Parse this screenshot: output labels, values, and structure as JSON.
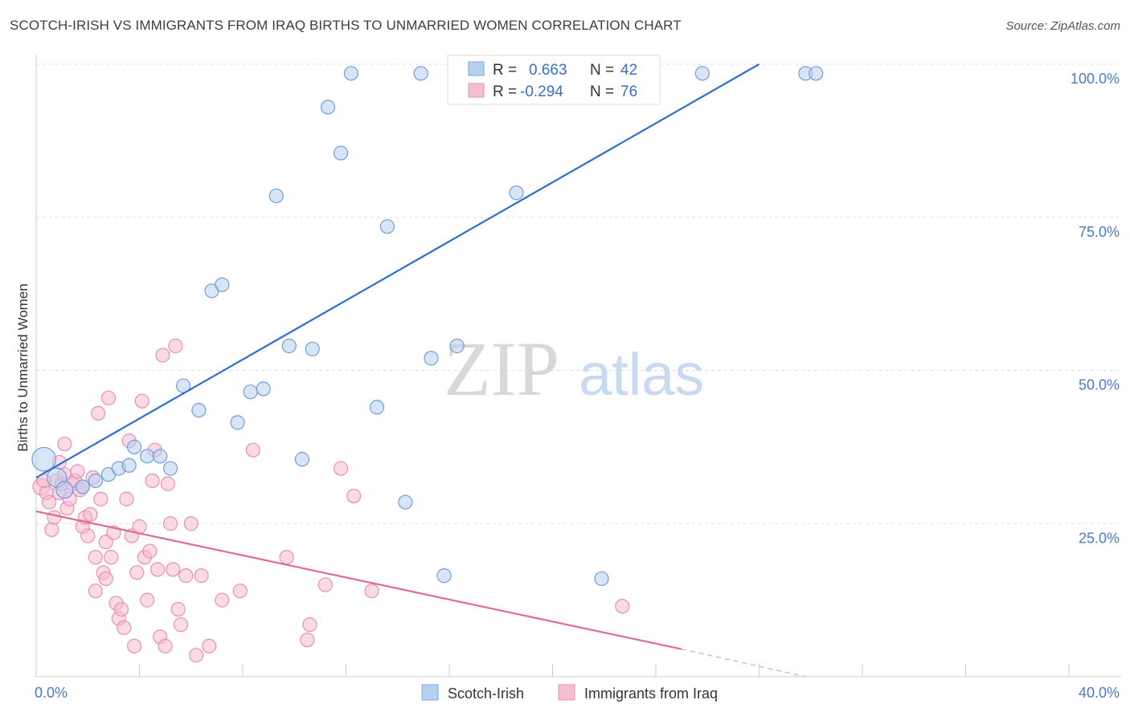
{
  "title": "SCOTCH-IRISH VS IMMIGRANTS FROM IRAQ BIRTHS TO UNMARRIED WOMEN CORRELATION CHART",
  "source": "Source: ZipAtlas.com",
  "watermark": {
    "zip": "ZIP",
    "atlas": "atlas"
  },
  "colors": {
    "blue": "#3a78d0",
    "blue_fill": "#b8d0f0",
    "pink": "#e06a98",
    "pink_fill": "#f6bcd0",
    "tick": "#4a7bc8",
    "grid": "#dddddd"
  },
  "legend": {
    "rows": [
      {
        "r_label": "R =",
        "r_value": "0.663",
        "n_label": "N =",
        "n_value": "42"
      },
      {
        "r_label": "R =",
        "r_value": "-0.294",
        "n_label": "N =",
        "n_value": "76"
      }
    ]
  },
  "chart_data": {
    "type": "scatter",
    "title": "SCOTCH-IRISH VS IMMIGRANTS FROM IRAQ BIRTHS TO UNMARRIED WOMEN CORRELATION CHART",
    "xlabel": "",
    "ylabel": "Births to Unmarried Women",
    "xlim": [
      0,
      40
    ],
    "ylim": [
      0,
      100
    ],
    "x_tick_labels": [
      "0.0%",
      "40.0%"
    ],
    "y_ticks": [
      25,
      50,
      75,
      100
    ],
    "y_tick_labels": [
      "25.0%",
      "50.0%",
      "75.0%",
      "100.0%"
    ],
    "grid": true,
    "legend_position": "top-center",
    "series": [
      {
        "name": "Scotch-Irish",
        "color": "#3a78d0",
        "R": 0.663,
        "N": 42,
        "trend": {
          "x": [
            0,
            28.0
          ],
          "y": [
            32.5,
            100
          ]
        },
        "points": [
          [
            0.3,
            35.5,
            3
          ],
          [
            0.8,
            32.5,
            2
          ],
          [
            1.1,
            30.5,
            1.5
          ],
          [
            1.8,
            31.0,
            1
          ],
          [
            2.3,
            32.0,
            1
          ],
          [
            2.8,
            33.0,
            1
          ],
          [
            3.2,
            34.0,
            1
          ],
          [
            3.6,
            34.5,
            1
          ],
          [
            3.8,
            37.5,
            1
          ],
          [
            4.3,
            36.0,
            1
          ],
          [
            4.8,
            36.0,
            1
          ],
          [
            5.2,
            34.0,
            1
          ],
          [
            5.7,
            47.5,
            1
          ],
          [
            6.3,
            43.5,
            1
          ],
          [
            6.8,
            63.0,
            1
          ],
          [
            7.2,
            64.0,
            1
          ],
          [
            7.8,
            41.5,
            1
          ],
          [
            8.3,
            46.5,
            1
          ],
          [
            8.8,
            47.0,
            1
          ],
          [
            9.3,
            78.5,
            1
          ],
          [
            9.8,
            54.0,
            1
          ],
          [
            10.3,
            35.5,
            1
          ],
          [
            10.7,
            53.5,
            1
          ],
          [
            11.3,
            93.0,
            1
          ],
          [
            11.8,
            85.5,
            1
          ],
          [
            12.2,
            98.5,
            1
          ],
          [
            13.2,
            44.0,
            1
          ],
          [
            13.6,
            73.5,
            1
          ],
          [
            14.3,
            28.5,
            1
          ],
          [
            14.9,
            98.5,
            1
          ],
          [
            15.3,
            52.0,
            1
          ],
          [
            15.8,
            16.5,
            1
          ],
          [
            16.3,
            54.0,
            1
          ],
          [
            17.2,
            98.5,
            1
          ],
          [
            18.0,
            98.5,
            1
          ],
          [
            18.6,
            79.0,
            1
          ],
          [
            19.3,
            98.5,
            1
          ],
          [
            20.6,
            98.5,
            1
          ],
          [
            21.9,
            16.0,
            1
          ],
          [
            25.8,
            98.5,
            1
          ],
          [
            29.8,
            98.5,
            1
          ],
          [
            30.2,
            98.5,
            1
          ]
        ]
      },
      {
        "name": "Immigrants from Iraq",
        "color": "#e06a98",
        "R": -0.294,
        "N": 76,
        "trend": {
          "x": [
            0,
            25.0
          ],
          "y": [
            27.0,
            4.5
          ]
        },
        "trend_dashed": {
          "x": [
            25.0,
            29.8
          ],
          "y": [
            4.5,
            0
          ]
        },
        "points": [
          [
            0.2,
            31.0,
            1.5
          ],
          [
            0.4,
            30.0,
            1
          ],
          [
            0.5,
            28.5,
            1
          ],
          [
            0.6,
            24.0,
            1
          ],
          [
            0.7,
            26.0,
            1
          ],
          [
            0.8,
            32.0,
            1
          ],
          [
            0.9,
            30.0,
            1
          ],
          [
            1.0,
            31.5,
            1
          ],
          [
            1.1,
            33.0,
            1
          ],
          [
            1.2,
            27.5,
            1
          ],
          [
            1.3,
            29.0,
            1
          ],
          [
            1.4,
            31.5,
            1
          ],
          [
            1.5,
            32.0,
            1
          ],
          [
            1.1,
            38.0,
            1
          ],
          [
            1.6,
            33.5,
            1
          ],
          [
            1.7,
            30.5,
            1
          ],
          [
            1.8,
            24.5,
            1
          ],
          [
            1.9,
            26.0,
            1
          ],
          [
            2.0,
            23.0,
            1
          ],
          [
            2.1,
            26.5,
            1
          ],
          [
            2.2,
            32.5,
            1
          ],
          [
            2.3,
            19.5,
            1
          ],
          [
            2.4,
            43.0,
            1
          ],
          [
            2.5,
            29.0,
            1
          ],
          [
            2.6,
            17.0,
            1
          ],
          [
            2.7,
            22.0,
            1
          ],
          [
            2.8,
            45.5,
            1
          ],
          [
            2.9,
            19.5,
            1
          ],
          [
            2.3,
            14.0,
            1
          ],
          [
            2.7,
            16.0,
            1
          ],
          [
            3.0,
            23.5,
            1
          ],
          [
            3.1,
            12.0,
            1
          ],
          [
            3.2,
            9.5,
            1
          ],
          [
            3.3,
            11.0,
            1
          ],
          [
            3.4,
            8.0,
            1
          ],
          [
            3.5,
            29.0,
            1
          ],
          [
            3.6,
            38.5,
            1
          ],
          [
            3.7,
            23.0,
            1
          ],
          [
            3.8,
            5.0,
            1
          ],
          [
            3.9,
            17.0,
            1
          ],
          [
            4.0,
            24.5,
            1
          ],
          [
            4.1,
            45.0,
            1
          ],
          [
            4.2,
            19.5,
            1
          ],
          [
            4.3,
            12.5,
            1
          ],
          [
            4.4,
            20.5,
            1
          ],
          [
            4.5,
            32.0,
            1
          ],
          [
            4.6,
            37.0,
            1
          ],
          [
            4.7,
            17.5,
            1
          ],
          [
            4.8,
            6.5,
            1
          ],
          [
            4.9,
            52.5,
            1
          ],
          [
            5.0,
            5.0,
            1
          ],
          [
            5.1,
            31.5,
            1
          ],
          [
            5.2,
            25.0,
            1
          ],
          [
            5.3,
            17.5,
            1
          ],
          [
            5.4,
            54.0,
            1
          ],
          [
            5.5,
            11.0,
            1
          ],
          [
            5.6,
            8.5,
            1
          ],
          [
            5.8,
            16.5,
            1
          ],
          [
            6.0,
            25.0,
            1
          ],
          [
            6.2,
            3.5,
            1
          ],
          [
            6.4,
            16.5,
            1
          ],
          [
            6.7,
            5.0,
            1
          ],
          [
            7.2,
            12.5,
            1
          ],
          [
            7.9,
            14.0,
            1
          ],
          [
            8.4,
            37.0,
            1
          ],
          [
            9.7,
            19.5,
            1
          ],
          [
            10.5,
            6.0,
            1
          ],
          [
            10.6,
            8.5,
            1
          ],
          [
            11.2,
            15.0,
            1
          ],
          [
            11.8,
            34.0,
            1
          ],
          [
            12.3,
            29.5,
            1
          ],
          [
            13.0,
            14.0,
            1
          ],
          [
            22.7,
            11.5,
            1
          ],
          [
            0.3,
            32.0,
            1
          ],
          [
            1.8,
            31.0,
            1
          ],
          [
            0.9,
            35.0,
            1
          ]
        ]
      }
    ]
  }
}
